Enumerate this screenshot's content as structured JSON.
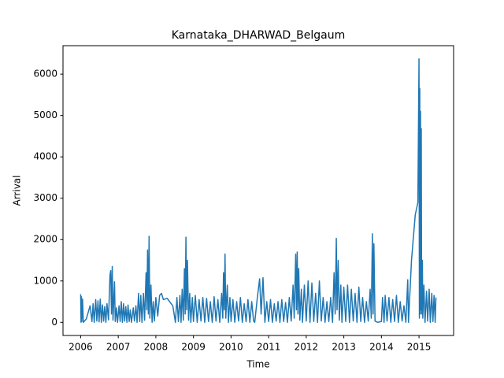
{
  "chart_data": {
    "type": "line",
    "title": "Karnataka_DHARWAD_Belgaum",
    "x_label": "Time",
    "y_label": "Arrival",
    "color": "#1f77b4",
    "grid": false,
    "xlim": [
      2005.53,
      2015.92
    ],
    "ylim": [
      -318,
      6688
    ],
    "xticks": [
      2006,
      2007,
      2008,
      2009,
      2010,
      2011,
      2012,
      2013,
      2014,
      2015
    ],
    "yticks": [
      0,
      1000,
      2000,
      3000,
      4000,
      5000,
      6000
    ],
    "x": [
      2006.0,
      2006.01,
      2006.02,
      2006.03,
      2006.05,
      2006.07,
      2006.15,
      2006.25,
      2006.3,
      2006.33,
      2006.36,
      2006.4,
      2006.43,
      2006.46,
      2006.49,
      2006.52,
      2006.55,
      2006.58,
      2006.61,
      2006.64,
      2006.67,
      2006.7,
      2006.74,
      2006.78,
      2006.8,
      2006.82,
      2006.84,
      2006.86,
      2006.9,
      2006.92,
      2006.95,
      2006.98,
      2007.02,
      2007.05,
      2007.08,
      2007.11,
      2007.14,
      2007.17,
      2007.2,
      2007.23,
      2007.26,
      2007.29,
      2007.32,
      2007.35,
      2007.4,
      2007.43,
      2007.47,
      2007.5,
      2007.54,
      2007.57,
      2007.6,
      2007.63,
      2007.67,
      2007.7,
      2007.74,
      2007.76,
      2007.78,
      2007.8,
      2007.82,
      2007.84,
      2007.87,
      2007.9,
      2007.93,
      2007.96,
      2008.0,
      2008.05,
      2008.1,
      2008.15,
      2008.2,
      2008.3,
      2008.45,
      2008.52,
      2008.56,
      2008.6,
      2008.64,
      2008.67,
      2008.7,
      2008.73,
      2008.76,
      2008.78,
      2008.8,
      2008.82,
      2008.84,
      2008.87,
      2008.9,
      2008.93,
      2008.97,
      2009.0,
      2009.05,
      2009.1,
      2009.15,
      2009.2,
      2009.25,
      2009.3,
      2009.35,
      2009.4,
      2009.45,
      2009.5,
      2009.55,
      2009.6,
      2009.65,
      2009.7,
      2009.75,
      2009.78,
      2009.8,
      2009.82,
      2009.84,
      2009.86,
      2009.9,
      2009.93,
      2009.97,
      2010.0,
      2010.05,
      2010.1,
      2010.15,
      2010.2,
      2010.25,
      2010.3,
      2010.35,
      2010.4,
      2010.45,
      2010.5,
      2010.55,
      2010.6,
      2010.63,
      2010.7,
      2010.76,
      2010.8,
      2010.85,
      2010.9,
      2010.95,
      2011.0,
      2011.05,
      2011.1,
      2011.15,
      2011.2,
      2011.25,
      2011.3,
      2011.35,
      2011.4,
      2011.45,
      2011.5,
      2011.55,
      2011.6,
      2011.65,
      2011.68,
      2011.72,
      2011.74,
      2011.76,
      2011.78,
      2011.8,
      2011.83,
      2011.87,
      2011.9,
      2011.95,
      2012.0,
      2012.05,
      2012.1,
      2012.15,
      2012.2,
      2012.25,
      2012.3,
      2012.35,
      2012.4,
      2012.45,
      2012.5,
      2012.55,
      2012.6,
      2012.65,
      2012.7,
      2012.74,
      2012.77,
      2012.8,
      2012.82,
      2012.85,
      2012.88,
      2012.92,
      2012.95,
      2013.0,
      2013.05,
      2013.1,
      2013.15,
      2013.2,
      2013.25,
      2013.3,
      2013.35,
      2013.4,
      2013.45,
      2013.5,
      2013.55,
      2013.6,
      2013.65,
      2013.7,
      2013.73,
      2013.76,
      2013.78,
      2013.8,
      2013.83,
      2013.9,
      2014.0,
      2014.03,
      2014.07,
      2014.1,
      2014.15,
      2014.2,
      2014.25,
      2014.3,
      2014.35,
      2014.4,
      2014.45,
      2014.5,
      2014.55,
      2014.6,
      2014.65,
      2014.7,
      2014.72,
      2014.8,
      2014.9,
      2014.97,
      2015.0,
      2015.01,
      2015.02,
      2015.03,
      2015.04,
      2015.05,
      2015.06,
      2015.07,
      2015.09,
      2015.1,
      2015.13,
      2015.16,
      2015.2,
      2015.23,
      2015.27,
      2015.3,
      2015.34,
      2015.37,
      2015.4,
      2015.43,
      2015.45
    ],
    "values": [
      680,
      0,
      620,
      20,
      560,
      0,
      80,
      400,
      20,
      450,
      0,
      550,
      30,
      520,
      10,
      560,
      0,
      420,
      30,
      380,
      0,
      450,
      60,
      1150,
      1250,
      200,
      1350,
      50,
      980,
      20,
      350,
      0,
      400,
      20,
      500,
      0,
      450,
      30,
      380,
      0,
      420,
      20,
      300,
      0,
      350,
      30,
      400,
      0,
      700,
      20,
      650,
      0,
      700,
      50,
      1200,
      300,
      1750,
      200,
      2080,
      100,
      900,
      0,
      500,
      30,
      600,
      150,
      650,
      700,
      550,
      580,
      400,
      0,
      600,
      20,
      650,
      0,
      800,
      50,
      1300,
      200,
      2060,
      300,
      1500,
      50,
      700,
      0,
      600,
      20,
      650,
      0,
      550,
      30,
      600,
      0,
      580,
      20,
      500,
      0,
      620,
      30,
      550,
      0,
      700,
      100,
      1200,
      300,
      1650,
      100,
      900,
      0,
      600,
      20,
      550,
      0,
      500,
      30,
      600,
      0,
      450,
      20,
      550,
      0,
      500,
      30,
      0,
      600,
      1050,
      200,
      1080,
      0,
      500,
      20,
      550,
      0,
      450,
      30,
      500,
      0,
      550,
      20,
      480,
      0,
      600,
      30,
      900,
      100,
      1650,
      300,
      1700,
      200,
      1300,
      50,
      800,
      0,
      900,
      30,
      1000,
      0,
      950,
      20,
      700,
      0,
      1000,
      30,
      600,
      0,
      500,
      20,
      600,
      0,
      1200,
      200,
      2030,
      300,
      1500,
      50,
      900,
      0,
      850,
      20,
      900,
      0,
      800,
      30,
      700,
      0,
      850,
      20,
      600,
      0,
      500,
      30,
      800,
      100,
      2140,
      200,
      1900,
      30,
      0,
      20,
      600,
      0,
      650,
      30,
      600,
      0,
      550,
      20,
      650,
      0,
      500,
      30,
      400,
      0,
      1030,
      0,
      1500,
      2600,
      2900,
      6370,
      100,
      5650,
      200,
      5100,
      300,
      4680,
      200,
      1500,
      100,
      900,
      0,
      750,
      30,
      800,
      0,
      700,
      20,
      650,
      0,
      600
    ]
  }
}
